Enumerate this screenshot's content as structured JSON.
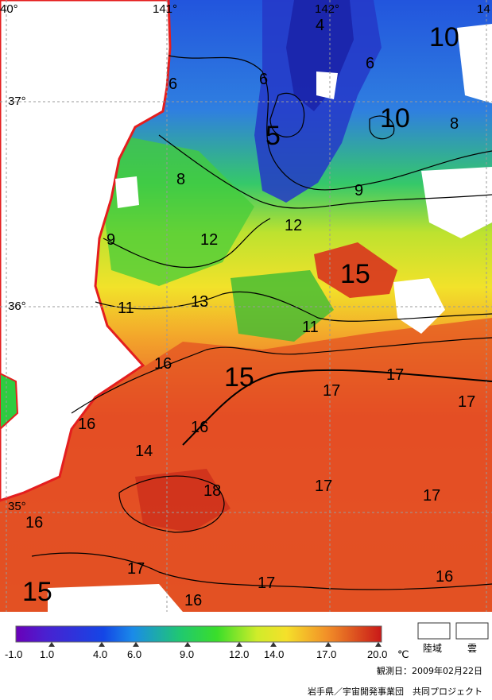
{
  "map": {
    "lon_labels": [
      "40°",
      "141°",
      "142°",
      "14"
    ],
    "lat_labels": [
      "37°",
      "36°",
      "35°"
    ],
    "isotherm_labels": [
      "4",
      "6",
      "6",
      "6",
      "10",
      "10",
      "8",
      "5",
      "8",
      "9",
      "9",
      "12",
      "12",
      "15",
      "11",
      "13",
      "11",
      "16",
      "15",
      "17",
      "17",
      "17",
      "16",
      "16",
      "14",
      "18",
      "17",
      "17",
      "16",
      "17",
      "17",
      "15",
      "16",
      "16"
    ]
  },
  "legend": {
    "ticks": [
      "-1.0",
      "1.0",
      "4.0",
      "6.0",
      "9.0",
      "12.0",
      "14.0",
      "17.0",
      "20.0"
    ],
    "unit": "℃",
    "land_label": "陸域",
    "cloud_label": "雲"
  },
  "observation": "観測日：2009年02月22日",
  "credit": "岩手県／宇宙開発事業団　共同プロジェクト",
  "colors": {
    "land_boundary": "#e41e1e",
    "grid": "#9a9a9a"
  }
}
